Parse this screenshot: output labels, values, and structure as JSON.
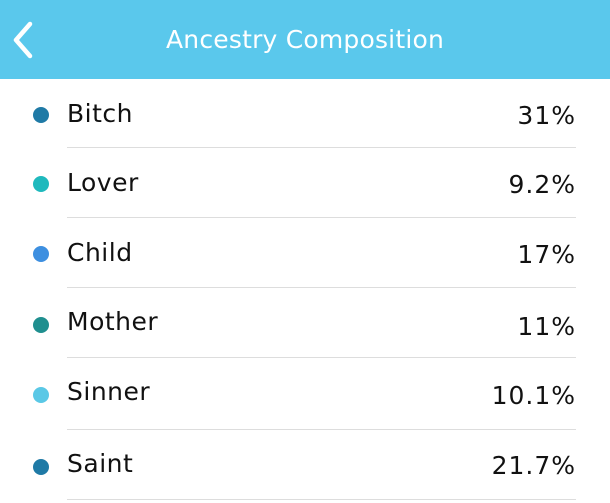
{
  "header": {
    "title": "Ancestry Composition",
    "back_icon": "chevron-left-icon",
    "background_color": "#5ac8ec"
  },
  "items": [
    {
      "label": "Bitch",
      "percent": "31%",
      "color": "#1f7aa6"
    },
    {
      "label": "Lover",
      "percent": "9.2%",
      "color": "#1fb9bd"
    },
    {
      "label": "Child",
      "percent": "17%",
      "color": "#3d8fe0"
    },
    {
      "label": "Mother",
      "percent": "11%",
      "color": "#1f8f8f"
    },
    {
      "label": "Sinner",
      "percent": "10.1%",
      "color": "#5ac8e6"
    },
    {
      "label": "Saint",
      "percent": "21.7%",
      "color": "#1f7aa6"
    }
  ]
}
